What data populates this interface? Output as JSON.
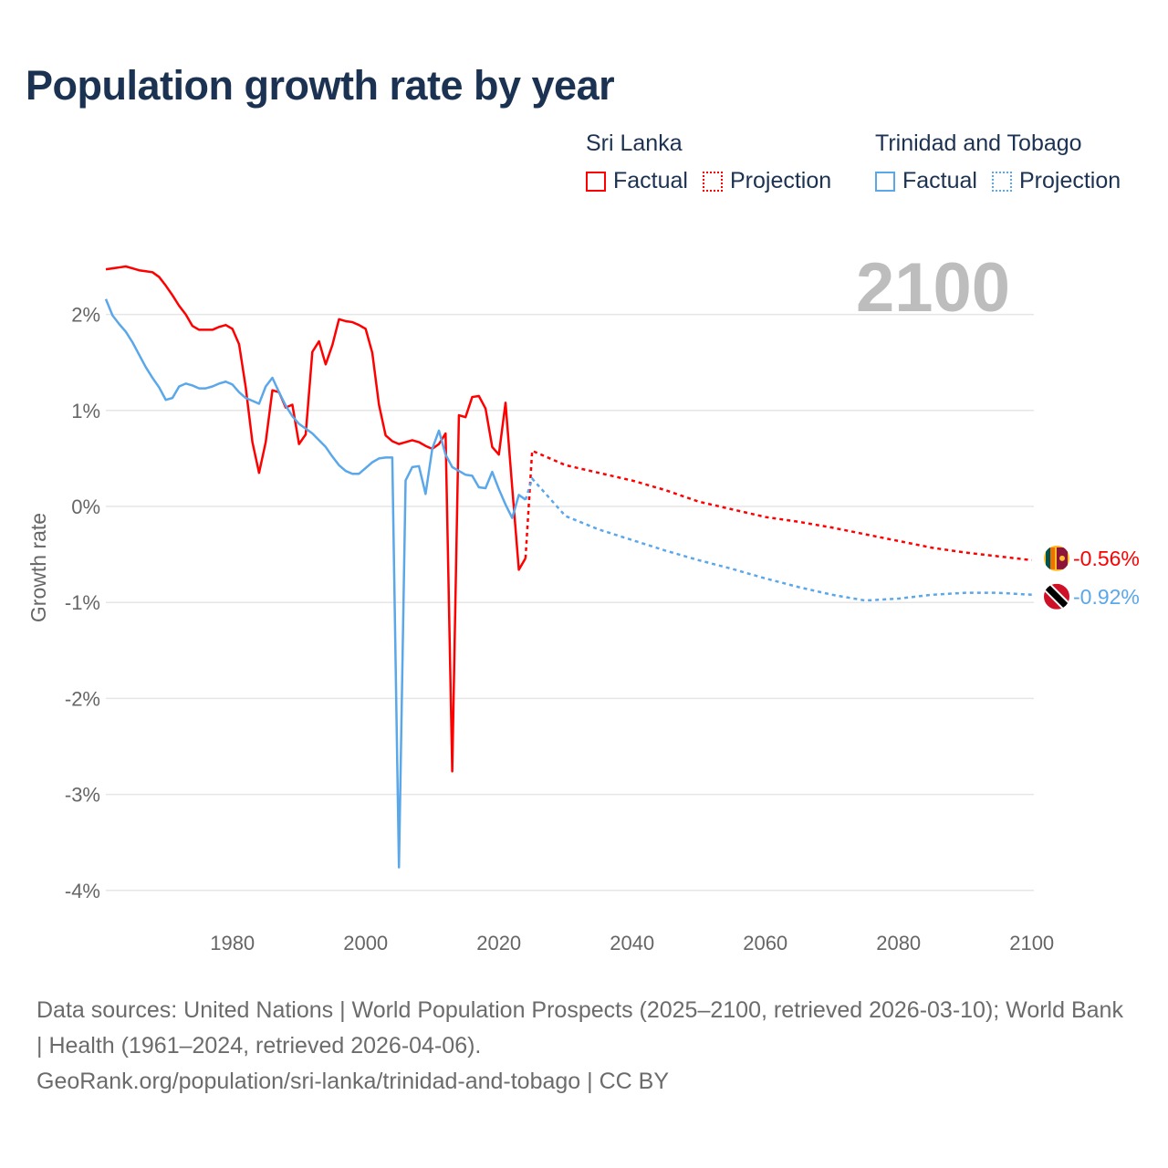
{
  "title": "Population growth rate by year",
  "current_year_label": "2100",
  "legend": [
    {
      "country": "Sri Lanka",
      "color": "#ff0000",
      "factual": "Factual",
      "projection": "Projection"
    },
    {
      "country": "Trinidad and Tobago",
      "color": "#5aa7ea",
      "factual": "Factual",
      "projection": "Projection"
    }
  ],
  "footer": {
    "sources": "Data sources: United Nations | World Population Prospects (2025–2100, retrieved 2026-03-10); World Bank | Health (1961–2024, retrieved 2026-04-06).",
    "credit": "GeoRank.org/population/sri-lanka/trinidad-and-tobago | CC BY"
  },
  "chart_data": {
    "type": "line",
    "title": "Population growth rate by year",
    "xlabel": "",
    "ylabel": "Growth rate",
    "xlim": [
      1961,
      2100
    ],
    "ylim": [
      -4.3,
      2.7
    ],
    "xticks": [
      1980,
      2000,
      2020,
      2040,
      2060,
      2080,
      2100
    ],
    "yticks": [
      2,
      1,
      0,
      -1,
      -2,
      -3,
      -4
    ],
    "ytick_labels": [
      "2%",
      "1%",
      "0%",
      "-1%",
      "-2%",
      "-3%",
      "-4%"
    ],
    "grid": true,
    "series": [
      {
        "name": "Sri Lanka",
        "color": "#ff0000",
        "end_label": "-0.56%",
        "factual_start": 1961,
        "factual": [
          2.47,
          2.48,
          2.49,
          2.5,
          2.48,
          2.46,
          2.45,
          2.44,
          2.39,
          2.3,
          2.2,
          2.09,
          2.0,
          1.88,
          1.84,
          1.84,
          1.84,
          1.87,
          1.89,
          1.85,
          1.69,
          1.24,
          0.67,
          0.35,
          0.67,
          1.21,
          1.19,
          1.03,
          1.06,
          0.65,
          0.75,
          1.61,
          1.72,
          1.48,
          1.68,
          1.95,
          1.93,
          1.92,
          1.89,
          1.85,
          1.6,
          1.06,
          0.74,
          0.68,
          0.65,
          0.67,
          0.69,
          0.67,
          0.63,
          0.6,
          0.65,
          0.76,
          -2.76,
          0.95,
          0.93,
          1.14,
          1.15,
          1.02,
          0.62,
          0.54,
          1.08,
          0.2,
          -0.66,
          -0.54
        ],
        "projection_years": [
          2025,
          2030,
          2035,
          2040,
          2045,
          2050,
          2055,
          2060,
          2065,
          2070,
          2075,
          2080,
          2085,
          2090,
          2095,
          2100
        ],
        "projection": [
          0.58,
          0.43,
          0.35,
          0.27,
          0.17,
          0.05,
          -0.03,
          -0.11,
          -0.16,
          -0.22,
          -0.29,
          -0.36,
          -0.43,
          -0.48,
          -0.52,
          -0.56
        ]
      },
      {
        "name": "Trinidad and Tobago",
        "color": "#5aa7ea",
        "end_label": "-0.92%",
        "factual_start": 1961,
        "factual": [
          2.16,
          1.99,
          1.9,
          1.82,
          1.71,
          1.58,
          1.45,
          1.34,
          1.24,
          1.11,
          1.13,
          1.25,
          1.28,
          1.26,
          1.23,
          1.23,
          1.25,
          1.28,
          1.3,
          1.27,
          1.19,
          1.13,
          1.1,
          1.07,
          1.25,
          1.34,
          1.19,
          1.05,
          0.94,
          0.86,
          0.81,
          0.76,
          0.69,
          0.62,
          0.52,
          0.43,
          0.37,
          0.34,
          0.34,
          0.4,
          0.46,
          0.5,
          0.51,
          0.51,
          -3.76,
          0.27,
          0.41,
          0.42,
          0.13,
          0.6,
          0.79,
          0.54,
          0.41,
          0.37,
          0.33,
          0.32,
          0.2,
          0.19,
          0.36,
          0.18,
          0.02,
          -0.12,
          0.12,
          0.07
        ],
        "projection_years": [
          2025,
          2030,
          2035,
          2040,
          2045,
          2050,
          2055,
          2060,
          2065,
          2070,
          2075,
          2080,
          2085,
          2090,
          2095,
          2100
        ],
        "projection": [
          0.29,
          -0.1,
          -0.24,
          -0.35,
          -0.46,
          -0.56,
          -0.65,
          -0.75,
          -0.84,
          -0.92,
          -0.98,
          -0.96,
          -0.92,
          -0.9,
          -0.9,
          -0.92
        ]
      }
    ]
  }
}
